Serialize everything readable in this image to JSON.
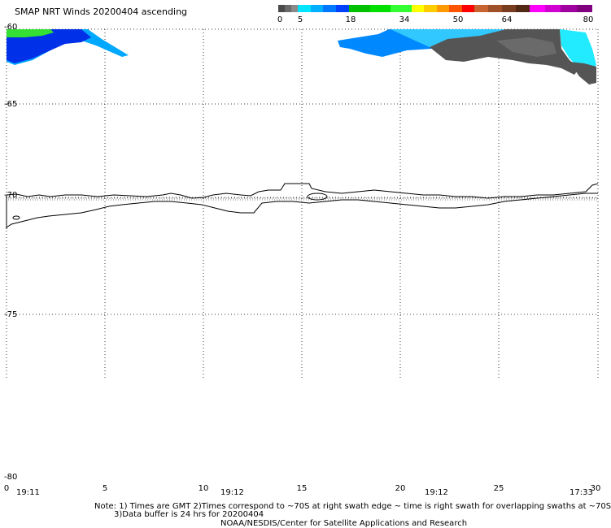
{
  "title": "SMAP NRT Winds 20200404 ascending",
  "colorbar": {
    "tick_labels": [
      "0",
      "5",
      "18",
      "34",
      "50",
      "64",
      "80"
    ],
    "segments": [
      {
        "from": 0,
        "to": 5,
        "colors": [
          "#4a4a4a",
          "#6a6a6a",
          "#8a8a8a"
        ]
      },
      {
        "from": 5,
        "to": 18,
        "colors": [
          "#00e5ff",
          "#00b0ff",
          "#0078ff",
          "#0040ff"
        ]
      },
      {
        "from": 18,
        "to": 34,
        "colors": [
          "#00c000",
          "#00e000",
          "#33ff33"
        ]
      },
      {
        "from": 34,
        "to": 50,
        "colors": [
          "#ffff00",
          "#ffcc00",
          "#ff9900",
          "#ff5500",
          "#ff0000"
        ]
      },
      {
        "from": 50,
        "to": 64,
        "colors": [
          "#c86432",
          "#a05028",
          "#783c1e",
          "#502814"
        ]
      },
      {
        "from": 64,
        "to": 80,
        "colors": [
          "#ff00ff",
          "#d000d0",
          "#a000a0",
          "#800080"
        ]
      }
    ]
  },
  "axes": {
    "y_ticks": [
      "-60",
      "-65",
      "-70",
      "-75",
      "-80"
    ],
    "x_ticks": [
      "0",
      "5",
      "10",
      "15",
      "20",
      "25",
      "30"
    ],
    "time_labels": [
      "19:11",
      "19:12",
      "19:12",
      "17:33"
    ]
  },
  "notes": {
    "line1": "Note: 1) Times are GMT 2)Times correspond to ~70S at right swath edge ~ time is right swath for overlapping swaths at ~70S",
    "line2": "3)Data buffer is 24 hrs for 20200404",
    "credit": "NOAA/NESDIS/Center for Satellite Applications and Research"
  }
}
